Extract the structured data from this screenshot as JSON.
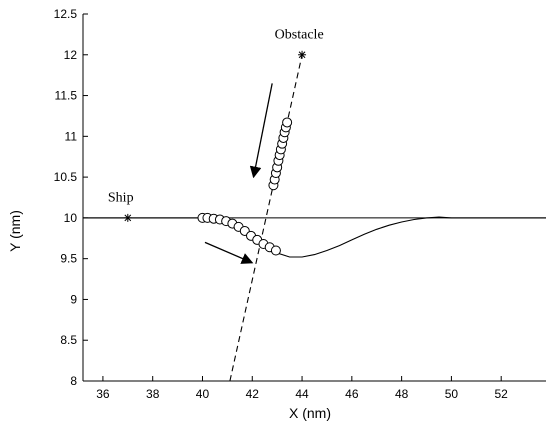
{
  "chart_data": {
    "type": "line",
    "xlabel": "X (nm)",
    "ylabel": "Y (nm)",
    "xlim": [
      35.2,
      53.8
    ],
    "ylim": [
      8,
      12.5
    ],
    "x_ticks": [
      36,
      38,
      40,
      42,
      44,
      46,
      48,
      50,
      52
    ],
    "y_ticks": [
      8,
      8.5,
      9,
      9.5,
      10,
      10.5,
      11,
      11.5,
      12,
      12.5
    ],
    "x_tick_labels": [
      "36",
      "38",
      "40",
      "42",
      "44",
      "46",
      "48",
      "50",
      "52"
    ],
    "y_tick_labels": [
      "8",
      "8.5",
      "9",
      "9.5",
      "10",
      "10.5",
      "11",
      "11.5",
      "12",
      "12.5"
    ],
    "grid": false,
    "annotations": [
      {
        "text": "Ship",
        "x": 36.2,
        "y": 10.2
      },
      {
        "text": "Obstacle",
        "x": 42.9,
        "y": 12.2
      }
    ],
    "series": [
      {
        "style": "solid-line",
        "x": [
          35.2,
          40.0,
          40.5,
          41.0,
          41.5,
          42.0,
          42.5,
          43.0,
          43.5,
          44.0,
          44.5,
          45.0,
          45.5,
          46.0,
          46.5,
          47.0,
          47.5,
          48.0,
          48.5,
          49.0,
          49.5,
          50.0,
          51.0,
          52.0,
          53.8
        ],
        "y": [
          10.0,
          10.0,
          9.97,
          9.92,
          9.84,
          9.75,
          9.65,
          9.57,
          9.52,
          9.52,
          9.55,
          9.6,
          9.66,
          9.73,
          9.8,
          9.86,
          9.91,
          9.95,
          9.98,
          10.0,
          10.01,
          10.0,
          10.0,
          10.0,
          10.0
        ]
      },
      {
        "style": "horizontal-reference",
        "x": [
          35.2,
          53.8
        ],
        "y": [
          10.0,
          10.0
        ]
      },
      {
        "style": "dashed-line",
        "x": [
          41.1,
          44.0
        ],
        "y": [
          8.0,
          12.0
        ]
      },
      {
        "style": "circle-markers",
        "x": [
          40.0,
          40.2,
          40.45,
          40.7,
          40.95,
          41.2,
          41.45,
          41.7,
          41.95,
          42.2,
          42.45,
          42.7,
          42.95
        ],
        "y": [
          10.0,
          10.0,
          9.99,
          9.98,
          9.96,
          9.93,
          9.89,
          9.84,
          9.78,
          9.73,
          9.68,
          9.64,
          9.6
        ]
      },
      {
        "style": "circle-markers",
        "x": [
          42.85,
          42.9,
          42.95,
          43.0,
          43.05,
          43.1,
          43.15,
          43.2,
          43.25,
          43.3,
          43.35,
          43.4
        ],
        "y": [
          10.4,
          10.47,
          10.55,
          10.62,
          10.7,
          10.77,
          10.84,
          10.91,
          10.98,
          11.05,
          11.11,
          11.17
        ]
      },
      {
        "style": "star-markers",
        "x": [
          37.0,
          44.0
        ],
        "y": [
          10.0,
          12.0
        ]
      }
    ],
    "arrows": [
      {
        "from": [
          42.8,
          11.65
        ],
        "to": [
          42.05,
          10.5
        ]
      },
      {
        "from": [
          40.1,
          9.7
        ],
        "to": [
          42.0,
          9.45
        ]
      }
    ]
  }
}
